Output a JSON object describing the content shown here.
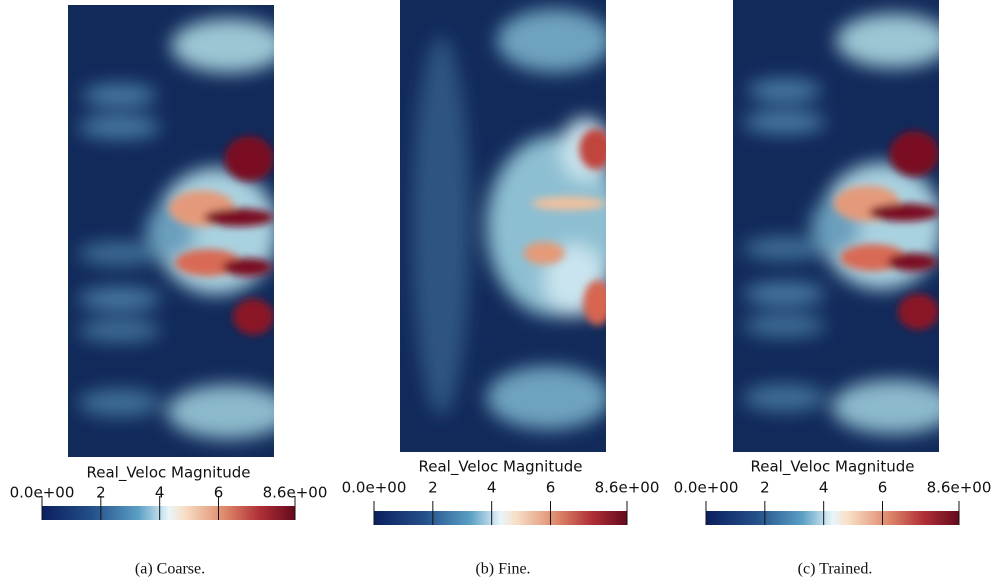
{
  "panels": [
    {
      "image_title": "Real_Veloc Magnitude",
      "colorbar": {
        "range": [
          0,
          8.6
        ],
        "ticks": [
          {
            "value": 0,
            "label": "0.0e+00"
          },
          2,
          4,
          6,
          {
            "value": 8.6,
            "label": "8.6e+00"
          }
        ]
      },
      "caption": "(a) Coarse."
    },
    {
      "image_title": "Real_Veloc Magnitude",
      "colorbar": {
        "range": [
          0,
          8.6
        ],
        "ticks": [
          {
            "value": 0,
            "label": "0.0e+00"
          },
          2,
          4,
          6,
          {
            "value": 8.6,
            "label": "8.6e+00"
          }
        ]
      },
      "caption": "(b) Fine."
    },
    {
      "image_title": "Real_Veloc Magnitude",
      "colorbar": {
        "range": [
          0,
          8.6
        ],
        "ticks": [
          {
            "value": 0,
            "label": "0.0e+00"
          },
          2,
          4,
          6,
          {
            "value": 8.6,
            "label": "8.6e+00"
          }
        ]
      },
      "caption": "(c) Trained."
    }
  ]
}
